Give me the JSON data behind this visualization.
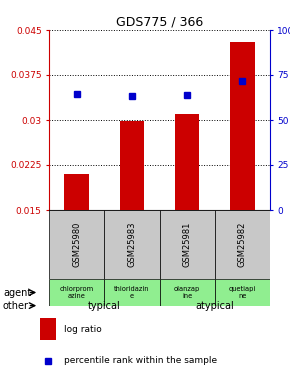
{
  "title": "GDS775 / 366",
  "samples": [
    "GSM25980",
    "GSM25983",
    "GSM25981",
    "GSM25982"
  ],
  "log_ratio": [
    0.021,
    0.0298,
    0.031,
    0.043
  ],
  "log_ratio_base": 0.015,
  "percentile": [
    0.645,
    0.635,
    0.638,
    0.718
  ],
  "ylim_left": [
    0.015,
    0.045
  ],
  "ylim_right": [
    0.0,
    1.0
  ],
  "yticks_left": [
    0.015,
    0.0225,
    0.03,
    0.0375,
    0.045
  ],
  "yticks_left_labels": [
    "0.015",
    "0.0225",
    "0.03",
    "0.0375",
    "0.045"
  ],
  "yticks_right": [
    0.0,
    0.25,
    0.5,
    0.75,
    1.0
  ],
  "yticks_right_labels": [
    "0",
    "25",
    "50",
    "75",
    "100%"
  ],
  "bar_color": "#cc0000",
  "dot_color": "#0000cc",
  "agent_labels": [
    "chlorprom\nazine",
    "thioridazin\ne",
    "olanzap\nine",
    "quetiapi\nne"
  ],
  "typical_color": "#ee82ee",
  "atypical_color": "#cc44cc",
  "typical_label": "typical",
  "atypical_label": "atypical",
  "sample_bg_color": "#c8c8c8",
  "agent_bg_color": "#90ee90",
  "legend_bar_color": "#cc0000",
  "legend_dot_color": "#0000cc",
  "legend_bar_label": "log ratio",
  "legend_dot_label": "percentile rank within the sample",
  "row_label_agent": "agent",
  "row_label_other": "other"
}
